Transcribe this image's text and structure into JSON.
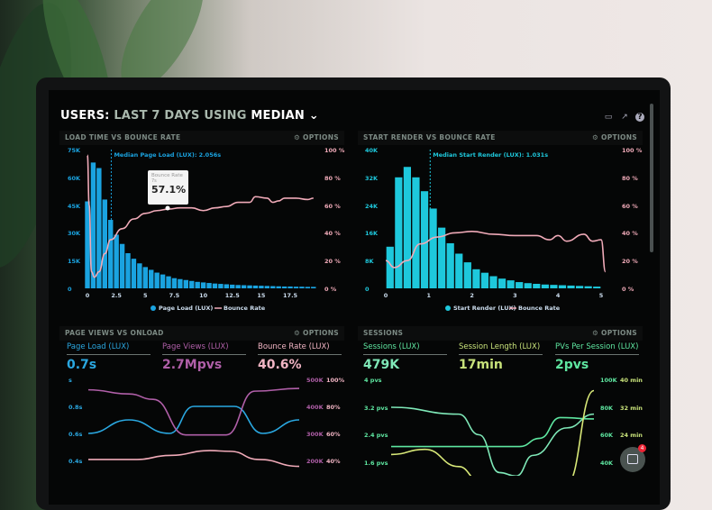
{
  "header": {
    "prefix": "USERS:",
    "range": "LAST 7 DAYS",
    "using": "USING",
    "stat": "MEDIAN"
  },
  "toolbar_icons": [
    "monitor-icon",
    "share-icon",
    "help-icon"
  ],
  "options_label": "⚙ OPTIONS",
  "panel1": {
    "title": "LOAD TIME VS BOUNCE RATE",
    "median_label": "Median Page Load (LUX): 2.056s",
    "y_left": [
      "75K",
      "60K",
      "45K",
      "30K",
      "15K",
      "0"
    ],
    "y_right": [
      "100 %",
      "80 %",
      "60 %",
      "40 %",
      "20 %",
      "0 %"
    ],
    "x_ticks": [
      "0",
      "2.5",
      "5",
      "7.5",
      "10",
      "12.5",
      "15",
      "17.5"
    ],
    "legend": [
      "Page Load (LUX)",
      "Bounce Rate"
    ],
    "tooltip": {
      "title": "Bounce Rate",
      "sub": "7s",
      "value": "57.1%"
    }
  },
  "panel2": {
    "title": "START RENDER VS BOUNCE RATE",
    "median_label": "Median Start Render (LUX): 1.031s",
    "y_left": [
      "40K",
      "32K",
      "24K",
      "16K",
      "8K",
      "0"
    ],
    "y_right": [
      "100 %",
      "80 %",
      "60 %",
      "40 %",
      "20 %",
      "0 %"
    ],
    "x_ticks": [
      "0",
      "1",
      "2",
      "3",
      "4",
      "5"
    ],
    "legend": [
      "Start Render (LUX)",
      "Bounce Rate"
    ]
  },
  "panel3": {
    "title": "PAGE VIEWS VS ONLOAD",
    "kpis": [
      {
        "label": "Page Load (LUX)",
        "value": "0.7s",
        "color": "#2aa7e0"
      },
      {
        "label": "Page Views (LUX)",
        "value": "2.7Mpvs",
        "color": "#b05fa8"
      },
      {
        "label": "Bounce Rate (LUX)",
        "value": "40.6%",
        "color": "#f2b5c4"
      }
    ],
    "y_left": [
      "s",
      "0.8s",
      "0.6s",
      "0.4s"
    ],
    "y_right_views": [
      "500K",
      "400K",
      "300K",
      "200K"
    ],
    "y_right_rate": [
      "100%",
      "80%",
      "60%",
      "40%"
    ]
  },
  "panel4": {
    "title": "SESSIONS",
    "kpis": [
      {
        "label": "Sessions (LUX)",
        "value": "479K"
      },
      {
        "label": "Session Length (LUX)",
        "value": "17min"
      },
      {
        "label": "PVs Per Session (LUX)",
        "value": "2pvs"
      }
    ],
    "y_left": [
      "4 pvs",
      "3.2 pvs",
      "2.4 pvs",
      "1.6 pvs"
    ],
    "y_right_sessions": [
      "100K",
      "80K",
      "60K",
      "40K"
    ],
    "y_right_length": [
      "40 min",
      "32 min",
      "24 min"
    ]
  },
  "chat": {
    "badge": "4"
  },
  "colors": {
    "bar": "#1aa3e0",
    "bar2": "#1ec8dc",
    "bounce": "#f0aab8",
    "green": "#5ee6a0",
    "yellow": "#d8e878"
  },
  "chart_data": [
    {
      "type": "bar",
      "title": "LOAD TIME VS BOUNCE RATE",
      "x": [
        0,
        0.5,
        1,
        1.5,
        2,
        2.5,
        3,
        3.5,
        4,
        4.5,
        5,
        5.5,
        6,
        6.5,
        7,
        7.5,
        8,
        8.5,
        9,
        9.5,
        10,
        10.5,
        11,
        11.5,
        12,
        12.5,
        13,
        13.5,
        14,
        14.5,
        15,
        15.5,
        16,
        16.5,
        17,
        17.5,
        18,
        18.5,
        19,
        19.5
      ],
      "values": [
        47,
        68,
        65,
        48,
        37,
        29,
        24,
        19,
        16,
        13.5,
        11.5,
        10,
        8.5,
        7.5,
        6.5,
        5.5,
        5,
        4.5,
        4,
        3.5,
        3.2,
        2.9,
        2.6,
        2.4,
        2.2,
        2,
        1.8,
        1.7,
        1.6,
        1.5,
        1.4,
        1.3,
        1.2,
        1.1,
        1,
        1,
        0.9,
        0.9,
        0.8,
        0.8
      ],
      "line": [
        [
          0,
          96
        ],
        [
          0.15,
          60
        ],
        [
          0.35,
          12
        ],
        [
          0.6,
          8
        ],
        [
          1,
          12
        ],
        [
          1.5,
          25
        ],
        [
          2,
          35
        ],
        [
          3,
          43
        ],
        [
          4,
          50
        ],
        [
          5,
          54
        ],
        [
          6,
          56
        ],
        [
          7,
          57.1
        ],
        [
          8,
          58
        ],
        [
          9,
          58
        ],
        [
          10,
          56
        ],
        [
          11,
          58
        ],
        [
          12,
          59
        ],
        [
          13,
          62
        ],
        [
          14,
          62
        ],
        [
          14.5,
          66
        ],
        [
          15.5,
          65
        ],
        [
          16,
          62
        ],
        [
          16.5,
          63
        ],
        [
          17,
          65
        ],
        [
          18,
          65
        ],
        [
          19,
          64
        ],
        [
          19.5,
          65
        ]
      ],
      "xlim": [
        0,
        20
      ],
      "ylim": [
        0,
        75
      ],
      "y2lim": [
        0,
        100
      ]
    },
    {
      "type": "bar",
      "title": "START RENDER VS BOUNCE RATE",
      "x": [
        0.1,
        0.3,
        0.5,
        0.7,
        0.9,
        1.1,
        1.3,
        1.5,
        1.7,
        1.9,
        2.1,
        2.3,
        2.5,
        2.7,
        2.9,
        3.1,
        3.3,
        3.5,
        3.7,
        3.9,
        4.1,
        4.3,
        4.5,
        4.7,
        4.9
      ],
      "values": [
        12,
        32,
        35,
        32,
        28,
        23,
        17.5,
        13,
        10,
        7.5,
        5.5,
        4.5,
        3.5,
        2.8,
        2.3,
        1.8,
        1.5,
        1.3,
        1.1,
        1,
        0.9,
        0.8,
        0.7,
        0.6,
        0.5
      ],
      "line": [
        [
          0,
          20
        ],
        [
          0.2,
          15
        ],
        [
          0.5,
          20
        ],
        [
          0.8,
          32
        ],
        [
          1.2,
          37
        ],
        [
          1.6,
          40
        ],
        [
          2,
          41
        ],
        [
          2.5,
          39
        ],
        [
          3,
          38
        ],
        [
          3.5,
          38
        ],
        [
          3.8,
          35
        ],
        [
          4,
          38
        ],
        [
          4.2,
          34
        ],
        [
          4.6,
          39
        ],
        [
          4.8,
          34
        ],
        [
          5,
          35
        ],
        [
          5.1,
          12
        ]
      ],
      "xlim": [
        0,
        5.2
      ],
      "ylim": [
        0,
        40
      ],
      "y2lim": [
        0,
        100
      ]
    },
    {
      "type": "line",
      "title": "PAGE VIEWS VS ONLOAD",
      "series": [
        {
          "name": "Page Load (LUX)",
          "values": [
            [
              0,
              0.6
            ],
            [
              1,
              0.7
            ],
            [
              2,
              0.6
            ],
            [
              2.6,
              0.8
            ],
            [
              3.6,
              0.8
            ],
            [
              4.3,
              0.6
            ],
            [
              5.2,
              0.7
            ]
          ]
        },
        {
          "name": "Page Views (LUX)",
          "values": [
            [
              0,
              465
            ],
            [
              1,
              450
            ],
            [
              1.6,
              430
            ],
            [
              2.4,
              300
            ],
            [
              3.4,
              300
            ],
            [
              4.1,
              460
            ],
            [
              5.2,
              470
            ]
          ]
        },
        {
          "name": "Bounce Rate (LUX)",
          "values": [
            [
              0,
              42
            ],
            [
              1.2,
              42
            ],
            [
              2,
              45
            ],
            [
              3,
              48.5
            ],
            [
              3.5,
              48
            ],
            [
              4.2,
              42
            ],
            [
              5.2,
              37
            ]
          ]
        }
      ]
    },
    {
      "type": "line",
      "title": "SESSIONS",
      "series": [
        {
          "name": "PVs Per Session (LUX)",
          "values": [
            [
              0,
              3.2
            ],
            [
              2,
              3.0
            ],
            [
              2.6,
              2.4
            ],
            [
              3.2,
              1.3
            ],
            [
              3.7,
              1.2
            ],
            [
              4.2,
              1.8
            ],
            [
              5.2,
              2.6
            ],
            [
              6,
              3.0
            ]
          ]
        },
        {
          "name": "Sessions (LUX)",
          "values": [
            [
              0,
              52
            ],
            [
              2.5,
              52
            ],
            [
              3.8,
              52
            ],
            [
              4.4,
              58
            ],
            [
              5,
              73
            ],
            [
              6,
              72
            ]
          ]
        },
        {
          "name": "Session Length (LUX)",
          "values": [
            [
              0,
              18.5
            ],
            [
              1,
              20
            ],
            [
              2,
              15
            ],
            [
              2.6,
              11
            ],
            [
              5.2,
              10
            ],
            [
              6,
              37
            ]
          ]
        }
      ]
    }
  ]
}
